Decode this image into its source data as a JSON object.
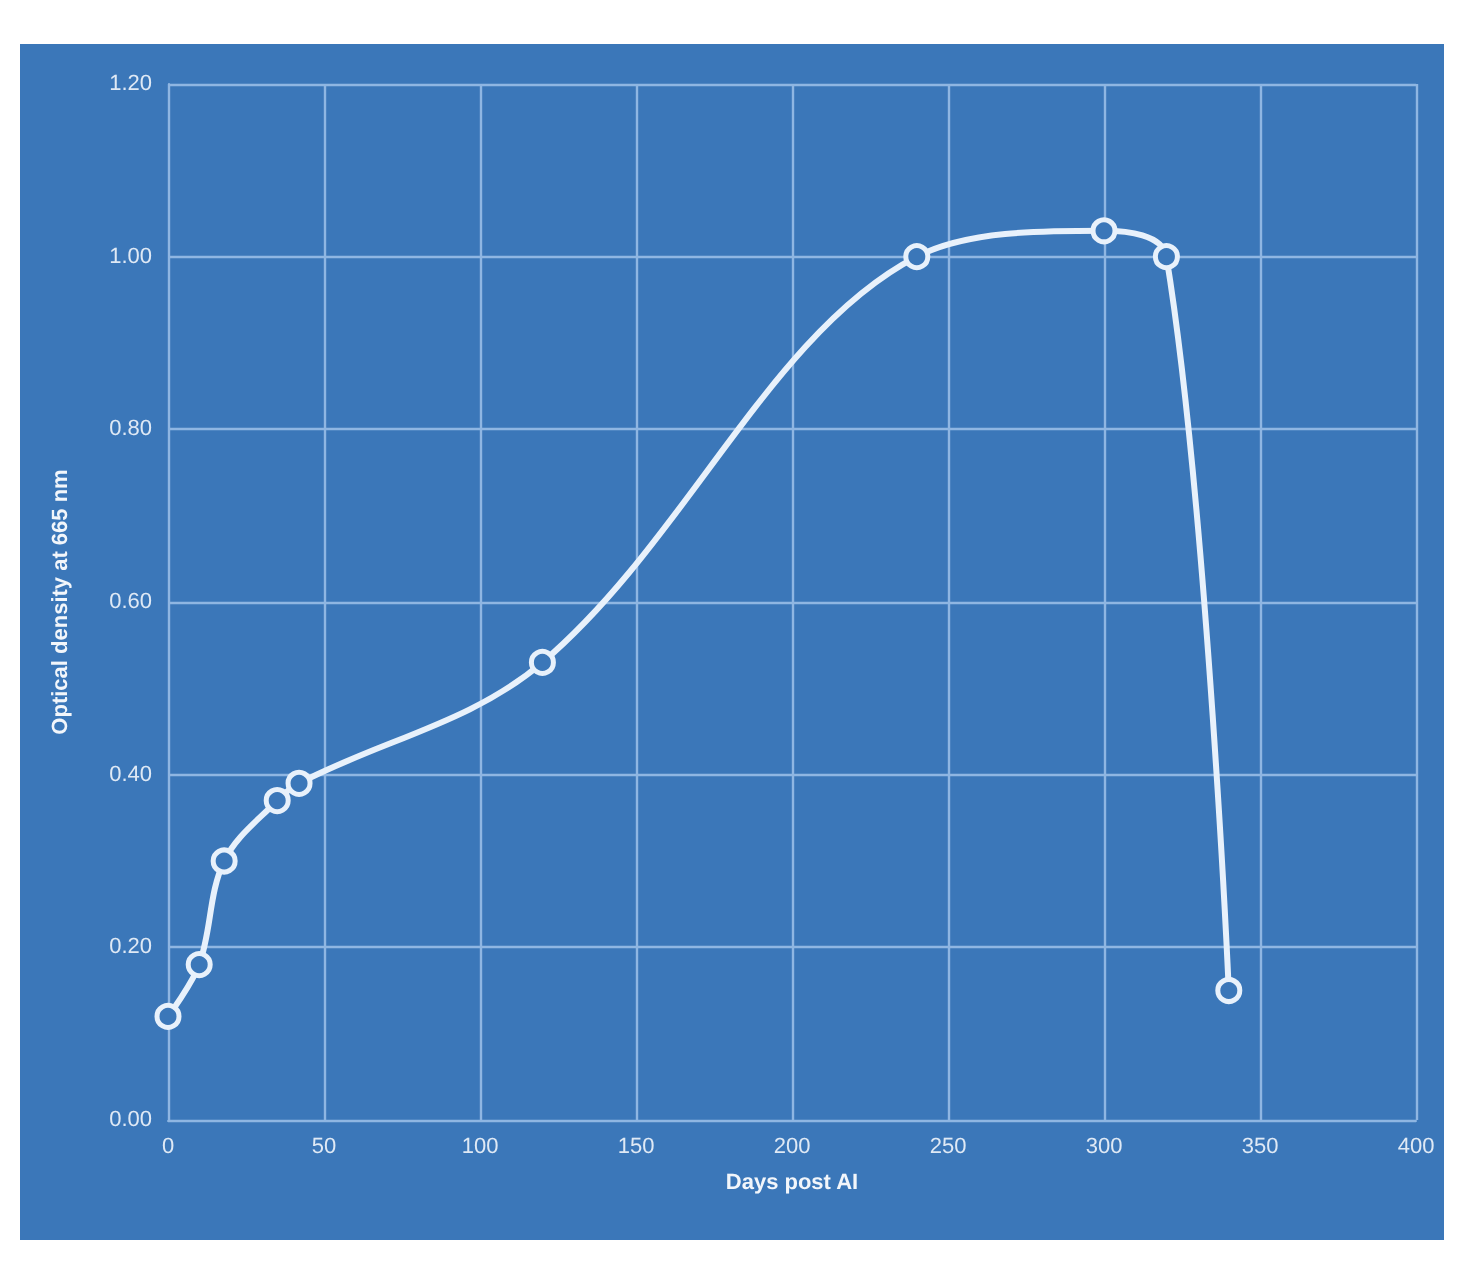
{
  "chart_data": {
    "type": "line",
    "xlabel": "Days post AI",
    "ylabel": "Optical density at 665 nm",
    "x": [
      0,
      10,
      18,
      35,
      42,
      120,
      240,
      300,
      320,
      340
    ],
    "series": [
      {
        "color": "#e8f1fb",
        "values": [
          0.12,
          0.18,
          0.3,
          0.37,
          0.39,
          0.53,
          1.0,
          1.03,
          1.0,
          0.15
        ]
      }
    ],
    "xlim": [
      0,
      400
    ],
    "xticks": [
      0,
      50,
      100,
      150,
      200,
      250,
      300,
      350,
      400
    ],
    "ylim": [
      0,
      1.2
    ],
    "yticks": [
      {
        "value": 0,
        "label": "0.00"
      },
      {
        "value": 0.2,
        "label": "0.20"
      },
      {
        "value": 0.4,
        "label": "0.40"
      },
      {
        "value": 0.6,
        "label": "0.60"
      },
      {
        "value": 0.8,
        "label": "0.80"
      },
      {
        "value": 1.0,
        "label": "1.00"
      },
      {
        "value": 1.2,
        "label": "1.20"
      }
    ],
    "grid": true,
    "marker": "circle",
    "line_style": "solid"
  }
}
